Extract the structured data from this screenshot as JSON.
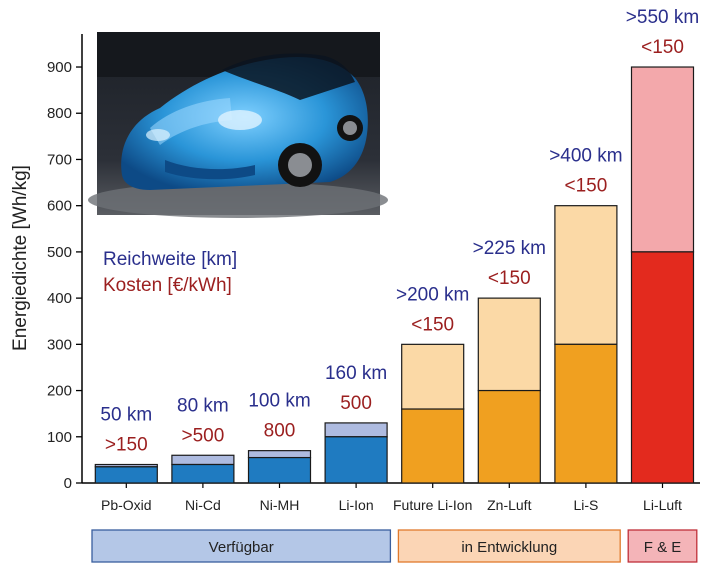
{
  "chart_data": {
    "type": "bar",
    "ylabel": "Energiedichte [Wh/kg]",
    "ylim": [
      0,
      950
    ],
    "yticks": [
      0,
      100,
      200,
      300,
      400,
      500,
      600,
      700,
      800,
      900
    ],
    "categories": [
      "Pb-Oxid",
      "Ni-Cd",
      "Ni-MH",
      "Li-Ion",
      "Future Li-Ion",
      "Zn-Luft",
      "Li-S",
      "Li-Luft"
    ],
    "lower_values": [
      35,
      40,
      55,
      100,
      160,
      200,
      300,
      500
    ],
    "upper_values": [
      40,
      60,
      70,
      130,
      300,
      400,
      600,
      900
    ],
    "range_labels": [
      "50 km",
      "80 km",
      "100 km",
      "160 km",
      ">200 km",
      ">225 km",
      ">400 km",
      ">550 km"
    ],
    "cost_labels": [
      ">150",
      ">500",
      "800",
      "500",
      "<150",
      "<150",
      "<150",
      "<150"
    ],
    "group_index": [
      0,
      0,
      0,
      0,
      1,
      1,
      1,
      2
    ],
    "groups": [
      {
        "label": "Verfügbar",
        "start": 0,
        "end": 3,
        "fill": "#b4c7e7",
        "stroke": "#3a5f9e"
      },
      {
        "label": "in Entwicklung",
        "start": 4,
        "end": 6,
        "fill": "#fbd5b5",
        "stroke": "#e07a2c"
      },
      {
        "label": "F & E",
        "start": 7,
        "end": 7,
        "fill": "#f4b4b8",
        "stroke": "#c0303a"
      }
    ],
    "colors": {
      "lower": [
        "#1f7bc1",
        "#f0a020",
        "#e32a1e"
      ],
      "upper": [
        "#aebbe0",
        "#fbd9a6",
        "#f3a8ab"
      ],
      "range_text": "#2a2f8c",
      "cost_text": "#9b1f1f"
    },
    "legend": {
      "range": "Reichweite [km]",
      "cost": "Kosten [€/kWh]"
    },
    "photo": "blue electric car (Nissan Leaf) photo"
  }
}
